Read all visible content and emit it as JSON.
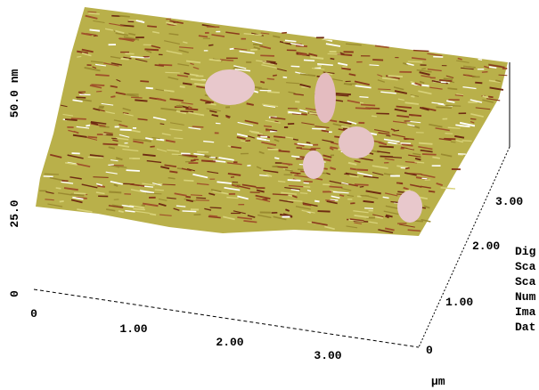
{
  "z_axis": {
    "label": "50.0 nm",
    "ticks": [
      "25.0",
      "0"
    ]
  },
  "x_axis": {
    "ticks": [
      "0",
      "1.00",
      "2.00",
      "3.00"
    ]
  },
  "y_axis": {
    "ticks": [
      "0",
      "1.00",
      "2.00",
      "3.00"
    ]
  },
  "unit": "µm",
  "side_labels": [
    "Dig",
    "Sca",
    "Sca",
    "Num",
    "Ima",
    "Dat"
  ]
}
